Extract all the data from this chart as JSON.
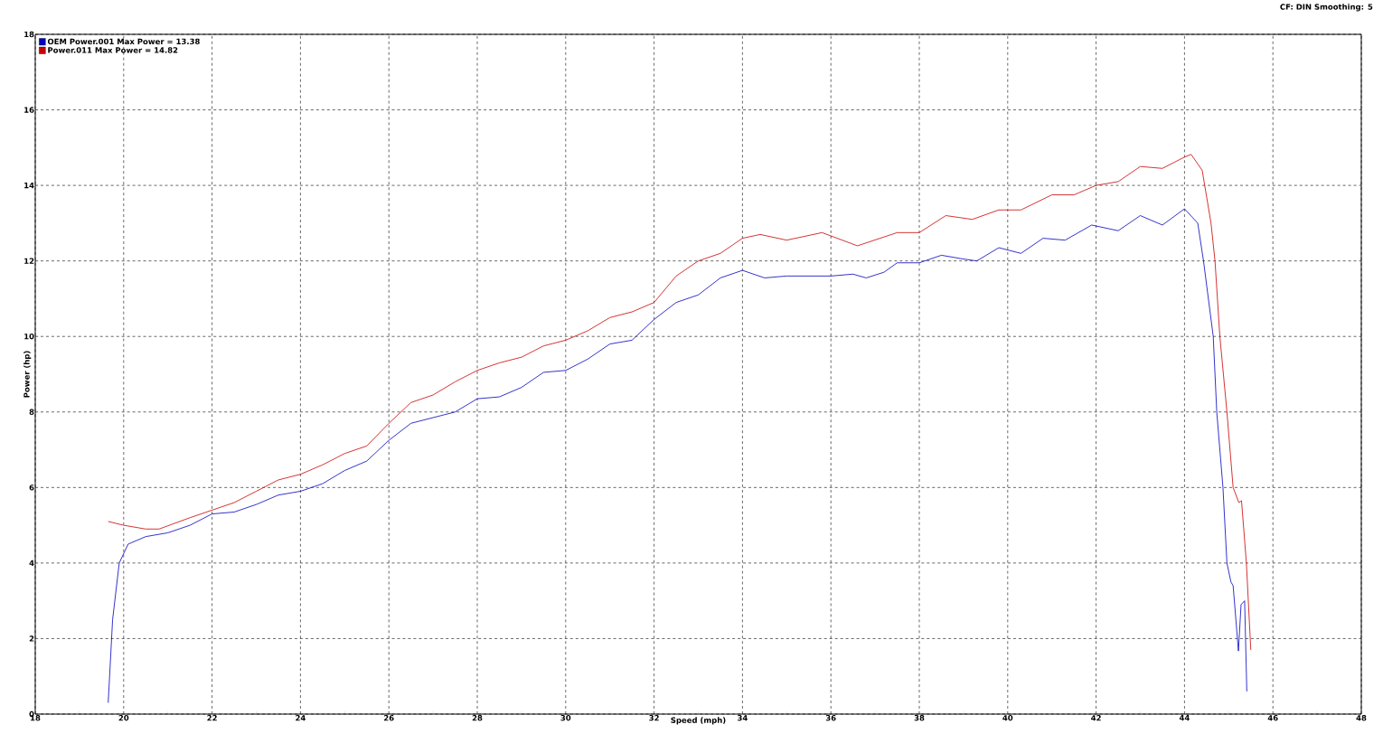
{
  "chart_data": {
    "type": "line",
    "xlabel": "Speed (mph)",
    "ylabel": "Power (hp)",
    "annotations": [
      "CF: DIN  Smoothing: 5"
    ],
    "xlim": [
      18,
      48
    ],
    "ylim": [
      0,
      18
    ],
    "xticks": [
      18,
      20,
      22,
      24,
      26,
      28,
      30,
      32,
      34,
      36,
      38,
      40,
      42,
      44,
      46,
      48
    ],
    "yticks": [
      0,
      2,
      4,
      6,
      8,
      10,
      12,
      14,
      16,
      18
    ],
    "grid": true,
    "legend": "top left",
    "marker": "none",
    "line_style": "solid",
    "series": [
      {
        "name": "OEM Power.001 Max Power = 13.38",
        "color": "#0000c0",
        "x": [
          19.65,
          19.75,
          19.9,
          20.1,
          20.5,
          21,
          21.5,
          22,
          22.5,
          23,
          23.5,
          24,
          24.5,
          25,
          25.5,
          26,
          26.5,
          27,
          27.5,
          28,
          28.5,
          29,
          29.5,
          30,
          30.5,
          31,
          31.5,
          32,
          32.5,
          33,
          33.5,
          34,
          34.5,
          35,
          35.5,
          36,
          36.5,
          36.8,
          37.2,
          37.5,
          38,
          38.5,
          39,
          39.3,
          39.8,
          40.3,
          40.8,
          41.3,
          41.9,
          42.5,
          43,
          43.5,
          44,
          44.3,
          44.43,
          44.65,
          44.73,
          44.87,
          44.96,
          45.05,
          45.1,
          45.22,
          45.28,
          45.36,
          45.41
        ],
        "values": [
          0.3,
          2.5,
          4.0,
          4.5,
          4.7,
          4.8,
          5.0,
          5.3,
          5.35,
          5.55,
          5.8,
          5.9,
          6.1,
          6.45,
          6.7,
          7.25,
          7.7,
          7.85,
          8.0,
          8.35,
          8.4,
          8.65,
          9.05,
          9.1,
          9.4,
          9.8,
          9.9,
          10.45,
          10.9,
          11.1,
          11.55,
          11.75,
          11.55,
          11.6,
          11.6,
          11.6,
          11.65,
          11.55,
          11.7,
          11.95,
          11.95,
          12.15,
          12.05,
          12.0,
          12.35,
          12.2,
          12.6,
          12.55,
          12.95,
          12.8,
          13.2,
          12.95,
          13.38,
          13.0,
          12.0,
          10.0,
          8.0,
          6.0,
          4.0,
          3.5,
          3.4,
          1.67,
          2.9,
          3.0,
          0.6
        ]
      },
      {
        "name": "Power.011 Max Power = 14.82",
        "color": "#cc0000",
        "x": [
          19.65,
          20,
          20.5,
          20.8,
          21.5,
          22,
          22.5,
          23,
          23.5,
          24,
          24.5,
          25,
          25.5,
          26,
          26.5,
          27,
          27.5,
          28,
          28.5,
          29,
          29.5,
          30,
          30.5,
          31,
          31.5,
          32,
          32.5,
          33,
          33.5,
          34,
          34.4,
          35,
          35.8,
          36.6,
          37.5,
          38,
          38.6,
          39.2,
          39.8,
          40.3,
          41,
          41.5,
          42,
          42.5,
          43,
          43.5,
          44,
          44.15,
          44.4,
          44.6,
          44.69,
          44.8,
          44.96,
          45.1,
          45.23,
          45.29,
          45.4,
          45.5
        ],
        "values": [
          5.1,
          5.0,
          4.9,
          4.9,
          5.2,
          5.4,
          5.6,
          5.9,
          6.2,
          6.35,
          6.6,
          6.9,
          7.1,
          7.7,
          8.25,
          8.45,
          8.8,
          9.1,
          9.3,
          9.45,
          9.75,
          9.9,
          10.15,
          10.5,
          10.65,
          10.9,
          11.6,
          12.0,
          12.2,
          12.6,
          12.7,
          12.55,
          12.75,
          12.4,
          12.75,
          12.75,
          13.2,
          13.1,
          13.35,
          13.35,
          13.75,
          13.75,
          14.0,
          14.1,
          14.5,
          14.45,
          14.75,
          14.82,
          14.4,
          13.0,
          12.0,
          10.0,
          8.0,
          6.0,
          5.6,
          5.65,
          4.0,
          1.7
        ]
      }
    ]
  }
}
